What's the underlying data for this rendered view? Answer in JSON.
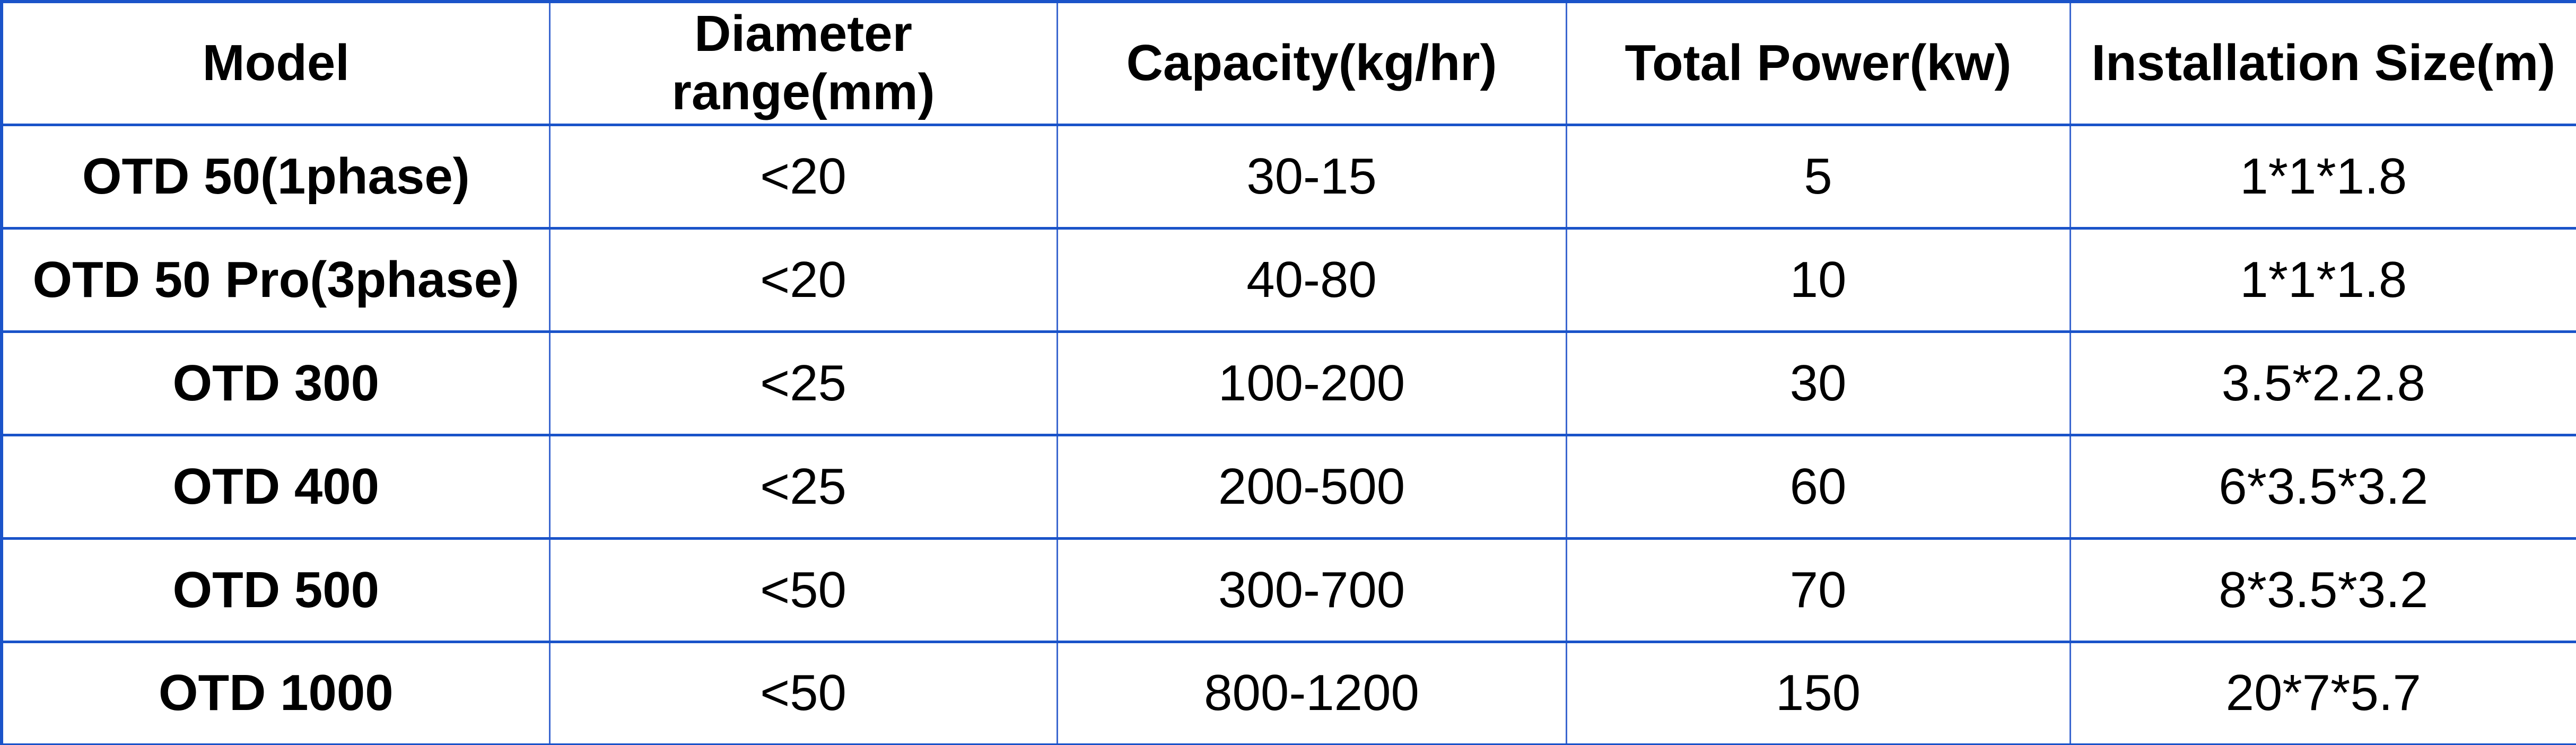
{
  "table": {
    "border_color_strong": "#1a53c9",
    "border_color_light": "#3a66cf",
    "columns": [
      {
        "id": "model",
        "label": "Model"
      },
      {
        "id": "diameter_range",
        "label": "Diameter range(mm)",
        "lines": [
          "Diameter",
          "range(mm)"
        ]
      },
      {
        "id": "capacity",
        "label": "Capacity(kg/hr)"
      },
      {
        "id": "total_power",
        "label": "Total Power(kw)"
      },
      {
        "id": "installation_size",
        "label": "Installation Size(m)"
      }
    ],
    "rows": [
      {
        "model": "OTD 50(1phase)",
        "diameter_range": "<20",
        "capacity": "30-15",
        "total_power": "5",
        "installation_size": "1*1*1.8"
      },
      {
        "model": "OTD 50 Pro(3phase)",
        "diameter_range": "<20",
        "capacity": "40-80",
        "total_power": "10",
        "installation_size": "1*1*1.8"
      },
      {
        "model": "OTD 300",
        "diameter_range": "<25",
        "capacity": "100-200",
        "total_power": "30",
        "installation_size": "3.5*2.2.8"
      },
      {
        "model": "OTD 400",
        "diameter_range": "<25",
        "capacity": "200-500",
        "total_power": "60",
        "installation_size": "6*3.5*3.2"
      },
      {
        "model": "OTD 500",
        "diameter_range": "<50",
        "capacity": "300-700",
        "total_power": "70",
        "installation_size": "8*3.5*3.2"
      },
      {
        "model": "OTD 1000",
        "diameter_range": "<50",
        "capacity": "800-1200",
        "total_power": "150",
        "installation_size": "20*7*5.7"
      }
    ]
  }
}
